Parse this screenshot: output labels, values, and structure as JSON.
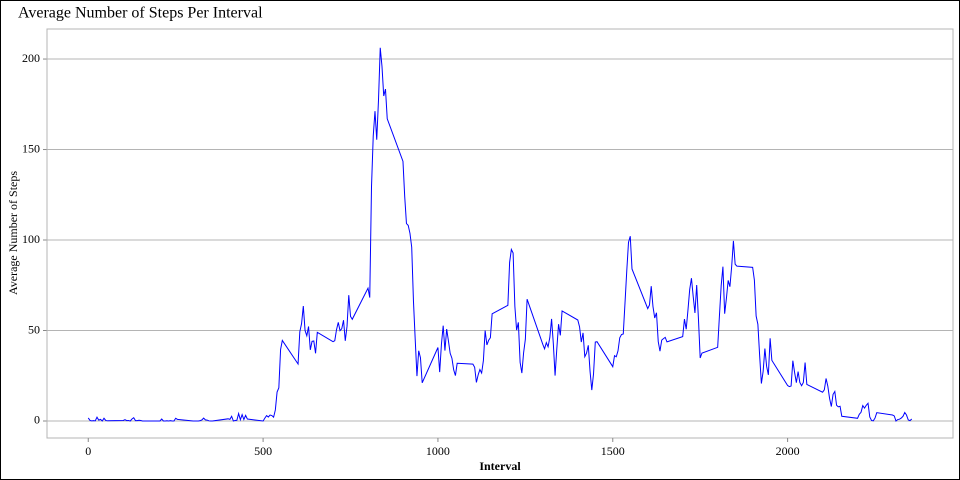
{
  "chart_data": {
    "type": "line",
    "title": "Average Number of Steps Per Interval",
    "x_label": "Interval",
    "y_label": "Average Number of Steps",
    "color": "#0000ff",
    "grid": true,
    "xlim": [
      -118,
      2473
    ],
    "ylim": [
      -9.4,
      216.6
    ],
    "xticks": [
      0,
      500,
      1000,
      1500,
      2000
    ],
    "yticks": [
      0,
      50,
      100,
      150,
      200
    ],
    "x": [
      0,
      5,
      10,
      15,
      20,
      25,
      30,
      35,
      40,
      45,
      50,
      55,
      100,
      105,
      110,
      115,
      120,
      125,
      130,
      135,
      140,
      145,
      150,
      155,
      200,
      205,
      210,
      215,
      220,
      225,
      230,
      235,
      240,
      245,
      250,
      255,
      300,
      305,
      310,
      315,
      320,
      325,
      330,
      335,
      340,
      345,
      350,
      355,
      400,
      405,
      410,
      415,
      420,
      425,
      430,
      435,
      440,
      445,
      450,
      455,
      500,
      505,
      510,
      515,
      520,
      525,
      530,
      535,
      540,
      545,
      550,
      555,
      600,
      605,
      610,
      615,
      620,
      625,
      630,
      635,
      640,
      645,
      650,
      655,
      700,
      705,
      710,
      715,
      720,
      725,
      730,
      735,
      740,
      745,
      750,
      755,
      800,
      805,
      810,
      815,
      820,
      825,
      830,
      835,
      840,
      845,
      850,
      855,
      900,
      905,
      910,
      915,
      920,
      925,
      930,
      935,
      940,
      945,
      950,
      955,
      1000,
      1005,
      1010,
      1015,
      1020,
      1025,
      1030,
      1035,
      1040,
      1045,
      1050,
      1055,
      1100,
      1105,
      1110,
      1115,
      1120,
      1125,
      1130,
      1135,
      1140,
      1145,
      1150,
      1155,
      1200,
      1205,
      1210,
      1215,
      1220,
      1225,
      1230,
      1235,
      1240,
      1245,
      1250,
      1255,
      1300,
      1305,
      1310,
      1315,
      1320,
      1325,
      1330,
      1335,
      1340,
      1345,
      1350,
      1355,
      1400,
      1405,
      1410,
      1415,
      1420,
      1425,
      1430,
      1435,
      1440,
      1445,
      1450,
      1455,
      1500,
      1505,
      1510,
      1515,
      1520,
      1525,
      1530,
      1535,
      1540,
      1545,
      1550,
      1555,
      1600,
      1605,
      1610,
      1615,
      1620,
      1625,
      1630,
      1635,
      1640,
      1645,
      1650,
      1655,
      1700,
      1705,
      1710,
      1715,
      1720,
      1725,
      1730,
      1735,
      1740,
      1745,
      1750,
      1755,
      1800,
      1805,
      1810,
      1815,
      1820,
      1825,
      1830,
      1835,
      1840,
      1845,
      1850,
      1855,
      1900,
      1905,
      1910,
      1915,
      1920,
      1925,
      1930,
      1935,
      1940,
      1945,
      1950,
      1955,
      2000,
      2005,
      2010,
      2015,
      2020,
      2025,
      2030,
      2035,
      2040,
      2045,
      2050,
      2055,
      2100,
      2105,
      2110,
      2115,
      2120,
      2125,
      2130,
      2135,
      2140,
      2145,
      2150,
      2155,
      2200,
      2205,
      2210,
      2215,
      2220,
      2225,
      2230,
      2235,
      2240,
      2245,
      2250,
      2255,
      2300,
      2305,
      2310,
      2315,
      2320,
      2325,
      2330,
      2335,
      2340,
      2345,
      2350,
      2355
    ],
    "values": [
      1.7,
      0.3,
      0.1,
      0.2,
      0.1,
      2.1,
      0.5,
      0.9,
      0,
      1.5,
      0.3,
      0.1,
      0.3,
      0.7,
      0.2,
      0.3,
      0,
      1.1,
      1.8,
      0.2,
      0.2,
      0.4,
      0.3,
      0,
      0,
      0,
      1.1,
      0,
      0,
      0.1,
      0,
      0.2,
      0,
      0,
      1.5,
      0.9,
      0,
      0,
      0,
      0,
      0.2,
      0.6,
      1.6,
      0.6,
      0.5,
      0.1,
      0,
      0,
      1.2,
      0.9,
      2.6,
      0,
      0.3,
      0.4,
      4.1,
      0.7,
      3.5,
      0.8,
      3.1,
      1.1,
      0,
      1.6,
      3,
      2.2,
      3.3,
      3,
      2.1,
      6.1,
      16,
      18.3,
      39.5,
      44.5,
      31.5,
      49.3,
      53.8,
      63.5,
      50,
      47.1,
      52.2,
      39.3,
      44,
      44.2,
      37.4,
      49,
      43.8,
      44.4,
      50.5,
      54.5,
      49.9,
      51,
      55.7,
      44.3,
      52.3,
      69.5,
      57.8,
      56.2,
      73.4,
      68.2,
      129.4,
      157.5,
      171.2,
      155.4,
      177.3,
      206.2,
      195.9,
      179.6,
      183.4,
      167,
      143.5,
      124,
      109.1,
      108.1,
      103.7,
      96,
      66.2,
      45.2,
      24.8,
      38.8,
      35,
      21.1,
      40.6,
      27,
      42.4,
      52.7,
      38.9,
      50.8,
      44.3,
      37.4,
      34.7,
      28.3,
      25.1,
      31.9,
      31.4,
      29.7,
      21.3,
      25.5,
      28.4,
      26.5,
      33.4,
      50,
      42,
      44.6,
      46,
      59.2,
      63.9,
      87.7,
      94.8,
      92.8,
      63.4,
      50.2,
      54.5,
      32.4,
      26.5,
      37.7,
      45.1,
      67.3,
      42.3,
      39.9,
      43.3,
      41,
      46.2,
      56.4,
      42.8,
      25.1,
      40,
      53.5,
      47.3,
      60.8,
      55.8,
      52,
      43.6,
      48.7,
      35.5,
      37.5,
      41.8,
      27.5,
      17.1,
      26.1,
      43.6,
      43.8,
      30,
      36.1,
      35.5,
      38.8,
      46,
      47.8,
      48.1,
      65.3,
      82.9,
      98.7,
      102.1,
      84,
      62.1,
      64.1,
      74.5,
      63.2,
      56.9,
      59.8,
      43.9,
      38.6,
      44.7,
      45.5,
      46.2,
      43.7,
      46.6,
      56.3,
      50.7,
      61.2,
      72.7,
      78.9,
      68.9,
      59.7,
      75.1,
      56.5,
      34.8,
      37.5,
      40.7,
      58,
      74.7,
      85.3,
      59.3,
      67.8,
      77.7,
      74.2,
      85.3,
      99.5,
      86.6,
      85.6,
      84.9,
      77.8,
      58,
      53.4,
      36.3,
      20.7,
      27.4,
      40,
      30.2,
      25.5,
      45.7,
      33.5,
      19.6,
      19,
      19.3,
      33.3,
      26.8,
      21.2,
      27.3,
      21.3,
      19.5,
      21.3,
      32.3,
      20.2,
      15.9,
      17.2,
      23.5,
      19.2,
      12.5,
      8,
      14.7,
      16.3,
      8.7,
      7.8,
      8.1,
      2.6,
      1.5,
      3.7,
      4.8,
      8.5,
      7.1,
      8.7,
      9.8,
      2.2,
      0.3,
      0.1,
      1.6,
      4.6,
      3.3,
      2.8,
      0,
      0.8,
      1,
      1.6,
      2.6,
      4.7,
      3.3,
      0.6,
      0.2,
      1.1
    ]
  }
}
